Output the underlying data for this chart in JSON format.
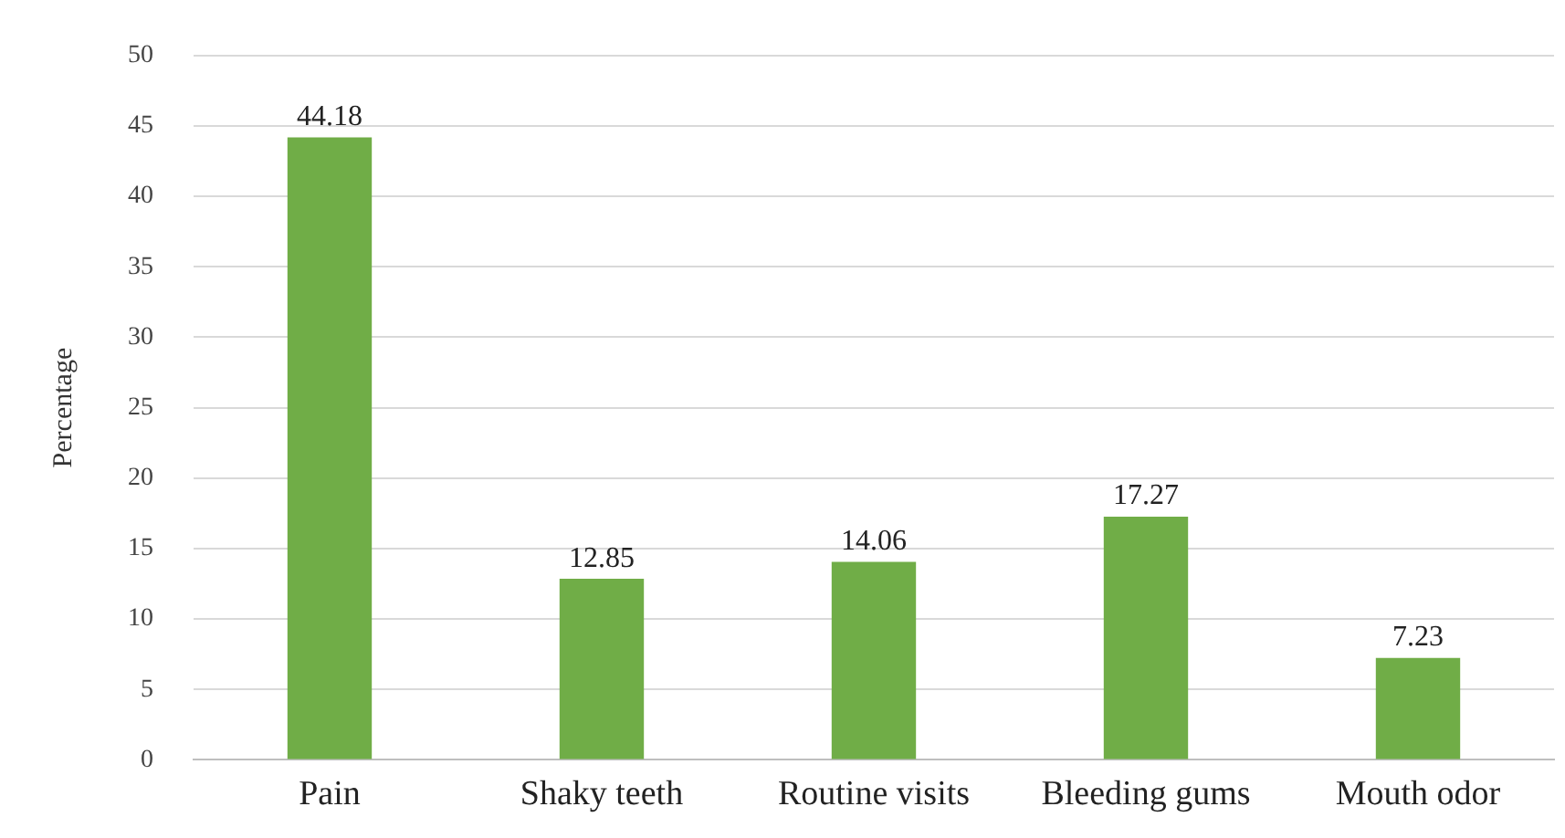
{
  "chart_data": {
    "type": "bar",
    "ylabel": "Percentage",
    "categories": [
      "Pain",
      "Shaky teeth",
      "Routine visits",
      "Bleeding gums",
      "Mouth odor"
    ],
    "values": [
      44.18,
      12.85,
      14.06,
      17.27,
      7.23
    ],
    "color": "#70ad47",
    "ylim": [
      0,
      50
    ],
    "yticks": [
      0,
      5,
      10,
      15,
      20,
      25,
      30,
      35,
      40,
      45,
      50
    ],
    "grid": "y",
    "legend": false,
    "data_labels": true
  }
}
